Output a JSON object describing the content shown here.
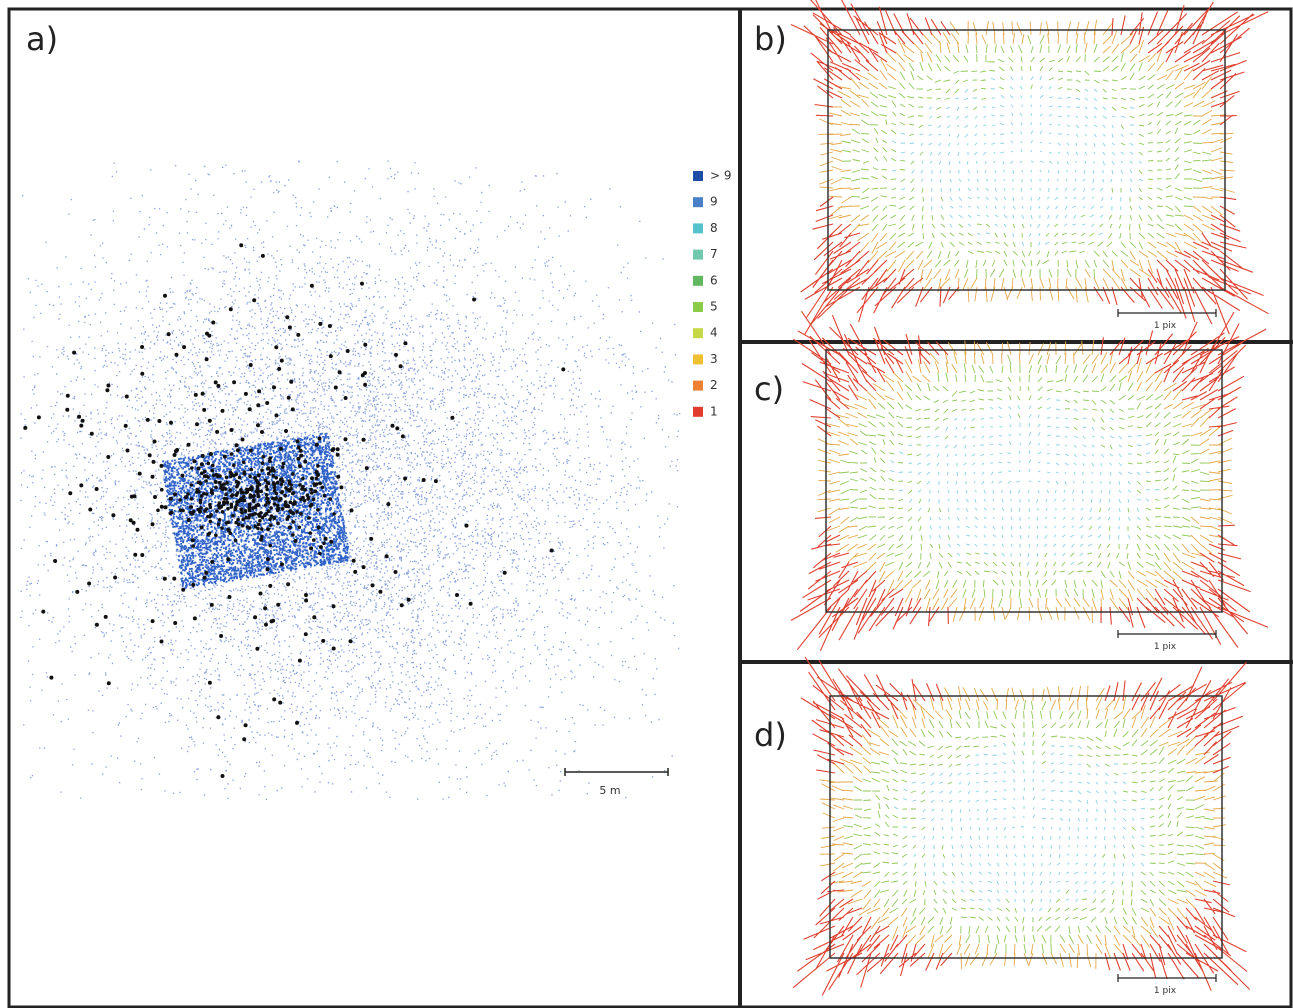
{
  "panel_a": {
    "label": "a)",
    "scale_label": "5 m",
    "legend": [
      {
        "label": "> 9",
        "color": "#1f4ea6"
      },
      {
        "label": "9",
        "color": "#4a80c8"
      },
      {
        "label": "8",
        "color": "#56c2cc"
      },
      {
        "label": "7",
        "color": "#72c8ae"
      },
      {
        "label": "6",
        "color": "#62b860"
      },
      {
        "label": "5",
        "color": "#8ccc48"
      },
      {
        "label": "4",
        "color": "#c6d846"
      },
      {
        "label": "3",
        "color": "#f0c032"
      },
      {
        "label": "2",
        "color": "#ee8034"
      },
      {
        "label": "1",
        "color": "#e03c30"
      }
    ]
  },
  "panels": [
    {
      "label": "b)",
      "scale_label": "1 pix"
    },
    {
      "label": "c)",
      "scale_label": "1 pix"
    },
    {
      "label": "d)",
      "scale_label": "1 pix"
    }
  ]
}
